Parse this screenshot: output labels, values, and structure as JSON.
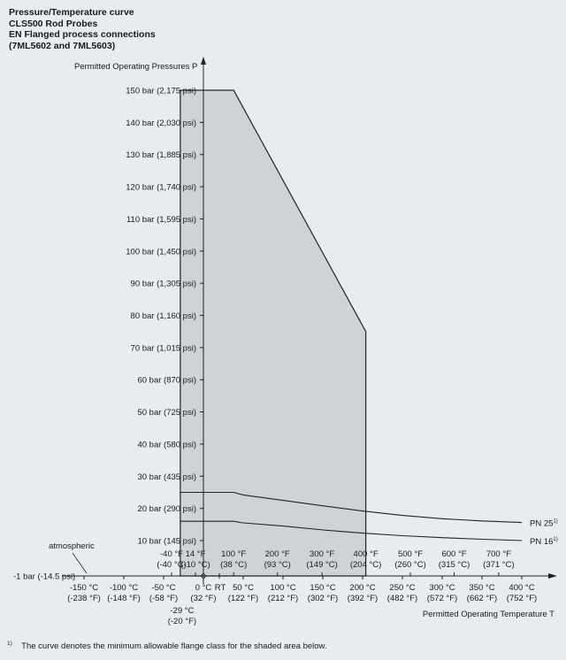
{
  "title_lines": [
    "Pressure/Temperature curve",
    "CLS500 Rod Probes",
    "EN Flanged process connections",
    "(7ML5602 and 7ML5603)"
  ],
  "footnote": {
    "marker": "1)",
    "text": "The curve denotes the minimum allowable flange class for the shaded area below."
  },
  "colors": {
    "background": "#e8ecef",
    "shaded_area": "#d0d3d6",
    "line": "#222222"
  },
  "chart_data": {
    "type": "area",
    "ylabel": "Permitted Operating Pressures P",
    "xlabel": "Permitted Operating Temperature T",
    "xunit": "°C",
    "yunit": "bar",
    "xlim": [
      -160,
      415
    ],
    "ylim": [
      -1,
      150
    ],
    "grid": false,
    "y_ticks": [
      {
        "value": 150,
        "label": "150 bar (2,175 psi)"
      },
      {
        "value": 140,
        "label": "140 bar (2,030 psi)"
      },
      {
        "value": 130,
        "label": "130 bar (1,885 psi)"
      },
      {
        "value": 120,
        "label": "120 bar (1,740 psi)"
      },
      {
        "value": 110,
        "label": "110 bar (1,595 psi)"
      },
      {
        "value": 100,
        "label": "100 bar (1,450 psi)"
      },
      {
        "value": 90,
        "label": "90 bar (1,305 psi)"
      },
      {
        "value": 80,
        "label": "80 bar (1,160 psi)"
      },
      {
        "value": 70,
        "label": "70 bar (1,015 psi)"
      },
      {
        "value": 60,
        "label": "60 bar (870 psi)"
      },
      {
        "value": 50,
        "label": "50 bar (725 psi)"
      },
      {
        "value": 40,
        "label": "40 bar (580 psi)"
      },
      {
        "value": 30,
        "label": "30 bar (435 psi)"
      },
      {
        "value": 20,
        "label": "20 bar (290 psi)"
      },
      {
        "value": 10,
        "label": "10 bar (145 psi)"
      }
    ],
    "baseline_label": "-1 bar (-14.5 psi)",
    "atmospheric_label": "atmospheric",
    "x_ticks_celsius": [
      {
        "value": -150,
        "line1": "-150 °C",
        "line2": "(-238 °F)"
      },
      {
        "value": -100,
        "line1": "-100 °C",
        "line2": "(-148 °F)"
      },
      {
        "value": -50,
        "line1": "-50 °C",
        "line2": "(-58 °F)"
      },
      {
        "value": 0,
        "line1": "0 °C",
        "line2": "(32 °F)"
      },
      {
        "value": 50,
        "line1": "50 °C",
        "line2": "(122 °F)"
      },
      {
        "value": 100,
        "line1": "100 °C",
        "line2": "(212 °F)"
      },
      {
        "value": 150,
        "line1": "150 °C",
        "line2": "(302 °F)"
      },
      {
        "value": 200,
        "line1": "200 °C",
        "line2": "(392 °F)"
      },
      {
        "value": 250,
        "line1": "250 °C",
        "line2": "(482 °F)"
      },
      {
        "value": 300,
        "line1": "300 °C",
        "line2": "(572 °F)"
      },
      {
        "value": 350,
        "line1": "350 °C",
        "line2": "(662 °F)"
      },
      {
        "value": 400,
        "line1": "400 °C",
        "line2": "(752 °F)"
      }
    ],
    "x_ticks_fahrenheit": [
      {
        "value": -40,
        "line1": "-40 °F",
        "line2": "(-40 °C)"
      },
      {
        "value": -10,
        "line1": "14 °F",
        "line2": "(-10 °C)"
      },
      {
        "value": 38,
        "line1": "100 °F",
        "line2": "(38 °C)"
      },
      {
        "value": 93,
        "line1": "200 °F",
        "line2": "(93 °C)"
      },
      {
        "value": 149,
        "line1": "300 °F",
        "line2": "(149 °C)"
      },
      {
        "value": 204,
        "line1": "400 °F",
        "line2": "(204 °C)"
      },
      {
        "value": 260,
        "line1": "500 °F",
        "line2": "(260 °C)"
      },
      {
        "value": 315,
        "line1": "600 °F",
        "line2": "(315 °C)"
      },
      {
        "value": 371,
        "line1": "700 °F",
        "line2": "(371 °C)"
      }
    ],
    "rt_label": "RT",
    "rt_value": 20,
    "min_temp": {
      "value": -29,
      "line1": "-29 °C",
      "line2": "(-20 °F)"
    },
    "shaded_area": {
      "x": [
        -29,
        -29,
        38,
        204,
        204
      ],
      "y": [
        -1,
        150,
        150,
        75,
        -1
      ]
    },
    "series": [
      {
        "name": "PN 25",
        "marker": "1)",
        "x": [
          -29,
          38,
          50,
          100,
          150,
          200,
          250,
          300,
          350,
          400
        ],
        "y": [
          25,
          25,
          24.2,
          22.5,
          20.8,
          19.2,
          17.8,
          16.8,
          16.1,
          15.6
        ]
      },
      {
        "name": "PN 16",
        "marker": "1)",
        "x": [
          -29,
          38,
          50,
          100,
          150,
          200,
          250,
          300,
          350,
          400
        ],
        "y": [
          16,
          16,
          15.5,
          14.5,
          13.3,
          12.3,
          11.5,
          10.9,
          10.4,
          10.0
        ]
      }
    ]
  }
}
